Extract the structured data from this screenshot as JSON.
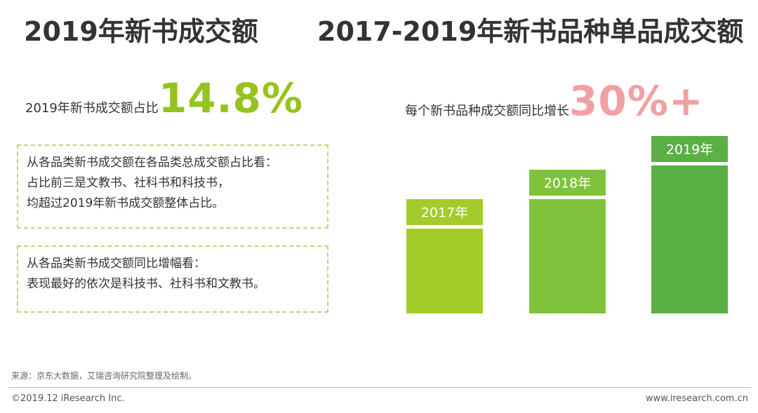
{
  "titles": {
    "left": "2019年新书成交额",
    "right": "2017-2019年新书品种单品成交额"
  },
  "stats": {
    "left_label": "2019年新书成交额占比",
    "left_value": "14.8%",
    "right_label": "每个新书品种成交额同比增长",
    "right_value": "30%+"
  },
  "notes": [
    {
      "lines": [
        "从各品类新书成交额在各品类总成交额占比看：",
        "占比前三是文教书、社科书和科技书，",
        "均超过2019年新书成交额整体占比。"
      ]
    },
    {
      "lines": [
        "从各品类新书成交额同比增幅看：",
        "表现最好的依次是科技书、社科书和文教书。"
      ]
    }
  ],
  "colors": {
    "accent_green": "#95c31f",
    "accent_pink": "#f2a0a3",
    "bar_2017": "#a3cc2a",
    "bar_2018": "#7fc33c",
    "bar_2019": "#5aaf45"
  },
  "chart_data": {
    "type": "bar",
    "categories": [
      "2017年",
      "2018年",
      "2019年"
    ],
    "values": [
      100,
      135,
      175
    ],
    "ylim": [
      0,
      175
    ],
    "grid": false,
    "value_note": "relative heights only; no axis or values printed"
  },
  "footer": {
    "source": "来源：京东大数据，艾瑞咨询研究院整理及绘制。",
    "copyright": "©2019.12 iResearch Inc.",
    "website": "www.iresearch.com.cn"
  }
}
